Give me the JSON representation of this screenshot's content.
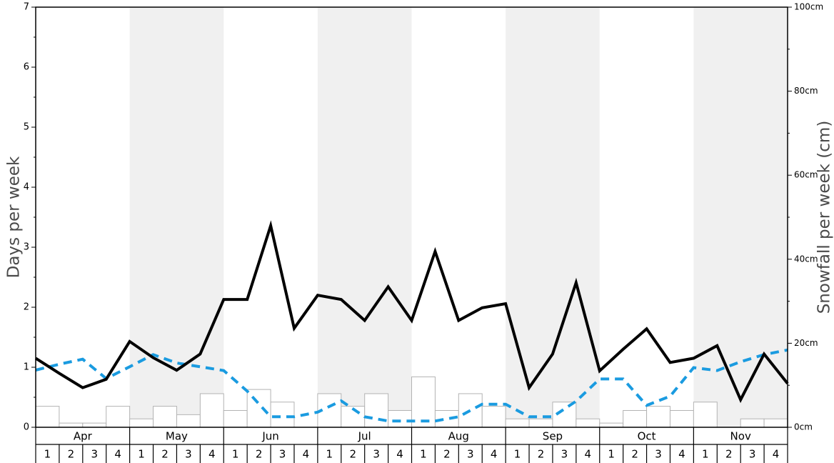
{
  "chart_data": {
    "type": "bar+line",
    "title": "",
    "y_left_label": "Days per week",
    "y_right_label": "Snowfall per week (cm)",
    "y_left_range": [
      0,
      7
    ],
    "y_right_range": [
      0,
      100
    ],
    "y_left_ticks": [
      "0",
      "1",
      "2",
      "3",
      "4",
      "5",
      "6",
      "7"
    ],
    "y_right_ticks": [
      "0cm",
      "20cm",
      "40cm",
      "60cm",
      "80cm",
      "100cm"
    ],
    "months": [
      "Apr",
      "May",
      "Jun",
      "Jul",
      "Aug",
      "Sep",
      "Oct",
      "Nov"
    ],
    "week_labels": [
      "1",
      "2",
      "3",
      "4"
    ],
    "colors": {
      "bars_fill": "#ffffff",
      "bars_stroke": "#b3b3b3",
      "solid_line": "#000000",
      "dashed_line": "#1a9be0",
      "band_shade": "#f0f0f0"
    },
    "series": [
      {
        "kind": "bar",
        "axis": "left",
        "values": [
          0.35,
          0.07,
          0.07,
          0.35,
          0.14,
          0.35,
          0.21,
          0.56,
          0.28,
          0.63,
          0.42,
          0,
          0.56,
          0.35,
          0.56,
          0.28,
          0.84,
          0.28,
          0.56,
          0.35,
          0.14,
          0.14,
          0.42,
          0.14,
          0.07,
          0.28,
          0.35,
          0.28,
          0.42,
          0,
          0.14,
          0.14
        ]
      },
      {
        "kind": "line",
        "style": "solid",
        "axis": "left",
        "values": [
          1.15,
          0.9,
          0.66,
          0.8,
          1.43,
          1.16,
          0.95,
          1.22,
          2.13,
          2.13,
          3.36,
          1.65,
          2.2,
          2.13,
          1.78,
          2.34,
          1.78,
          2.93,
          1.78,
          1.99,
          2.06,
          0.66,
          1.22,
          2.41,
          0.94,
          1.3,
          1.64,
          1.08,
          1.15,
          1.36,
          0.46,
          1.22,
          0.73
        ]
      },
      {
        "kind": "line",
        "style": "dashed",
        "axis": "right",
        "values": [
          13.6,
          15,
          16.2,
          11.6,
          14.4,
          17.3,
          15.3,
          14.4,
          13.5,
          8.6,
          2.5,
          2.5,
          3.6,
          6.3,
          2.5,
          1.5,
          1.5,
          1.5,
          2.5,
          5.5,
          5.5,
          2.5,
          2.5,
          6.2,
          11.5,
          11.5,
          5.2,
          7.4,
          14.2,
          13.5,
          15.6,
          17.3,
          18.4
        ]
      }
    ]
  }
}
